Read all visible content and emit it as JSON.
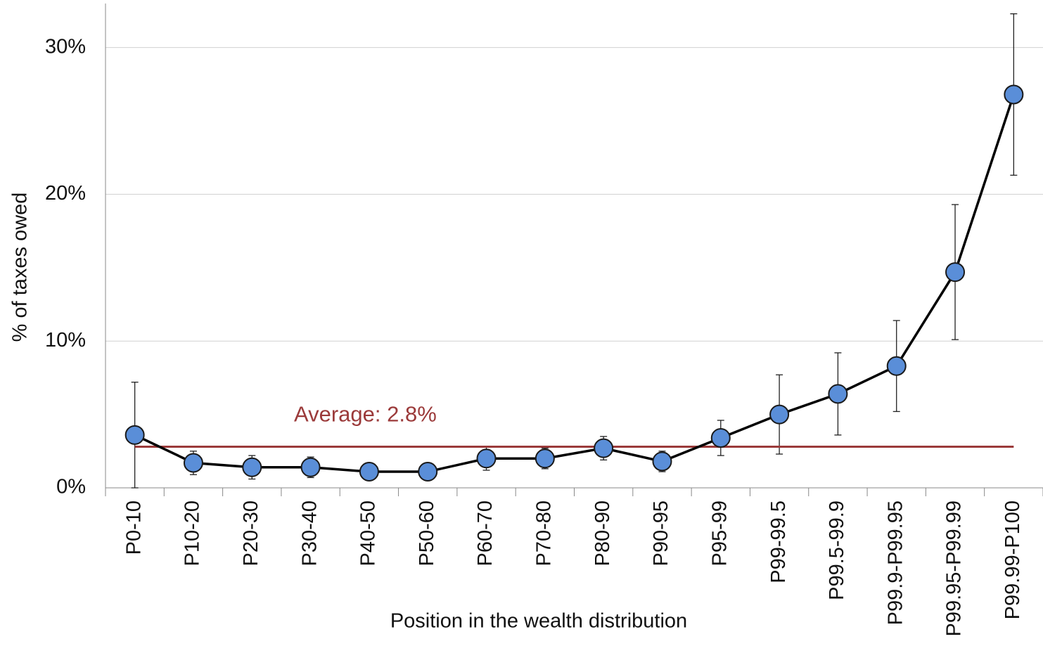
{
  "chart_data": {
    "type": "line",
    "x_label": "Position in the wealth distribution",
    "y_label": "% of taxes owed",
    "categories": [
      "P0-10",
      "P10-20",
      "P20-30",
      "P30-40",
      "P40-50",
      "P50-60",
      "P60-70",
      "P70-80",
      "P80-90",
      "P90-95",
      "P95-99",
      "P99-99.5",
      "P99.5-99.9",
      "P99.9-P99.95",
      "P99.95-P99.99",
      "P99.99-P100"
    ],
    "series": [
      {
        "color": "#5a8ed8",
        "line_color": "#000000",
        "values": [
          3.6,
          1.7,
          1.4,
          1.4,
          1.1,
          1.1,
          2.0,
          2.0,
          2.7,
          1.8,
          3.4,
          5.0,
          6.4,
          8.3,
          14.7,
          26.8
        ],
        "errors": [
          3.6,
          0.8,
          0.8,
          0.7,
          0.2,
          0.2,
          0.8,
          0.7,
          0.8,
          0.7,
          1.2,
          2.7,
          2.8,
          3.1,
          4.6,
          5.5
        ]
      }
    ],
    "average": {
      "value": 2.8,
      "label": "Average:  2.8%",
      "color": "#9b3a3a"
    },
    "ylim": [
      0,
      33
    ],
    "yticks": [
      {
        "value": 0,
        "label": "0%"
      },
      {
        "value": 10,
        "label": "10%"
      },
      {
        "value": 20,
        "label": "20%"
      },
      {
        "value": 30,
        "label": "30%"
      }
    ],
    "grid": true
  }
}
